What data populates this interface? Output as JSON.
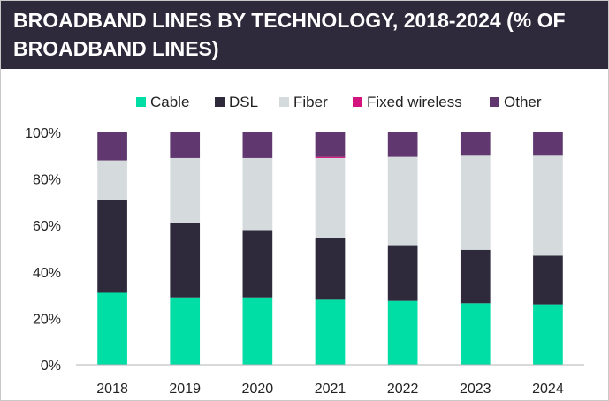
{
  "title": "BROADBAND LINES BY TECHNOLOGY, 2018-2024 (% OF BROADBAND LINES)",
  "colors": {
    "title_bg": "#2e2a3c",
    "Cable": "#00dda5",
    "DSL": "#2e2a3c",
    "Fiber": "#d5dadd",
    "Fixed wireless": "#d4147e",
    "Other": "#60376f"
  },
  "chart_data": {
    "type": "bar",
    "stacked": true,
    "title": "BROADBAND LINES BY TECHNOLOGY, 2018-2024 (% OF BROADBAND LINES)",
    "xlabel": "",
    "ylabel": "",
    "categories": [
      "2018",
      "2019",
      "2020",
      "2021",
      "2022",
      "2023",
      "2024"
    ],
    "ylim": [
      0,
      100
    ],
    "yticks": [
      "0%",
      "20%",
      "40%",
      "60%",
      "80%",
      "100%"
    ],
    "legend_position": "top",
    "grid": false,
    "series": [
      {
        "name": "Cable",
        "color": "#00dda5",
        "values": [
          31,
          29,
          29,
          28,
          27.5,
          26.5,
          26
        ]
      },
      {
        "name": "DSL",
        "color": "#2e2a3c",
        "values": [
          40,
          32,
          29,
          26.5,
          24,
          23,
          21
        ]
      },
      {
        "name": "Fiber",
        "color": "#d5dadd",
        "values": [
          17,
          28,
          31,
          34.5,
          38,
          40.5,
          43
        ]
      },
      {
        "name": "Fixed wireless",
        "color": "#d4147e",
        "values": [
          0,
          0,
          0,
          0.5,
          0,
          0,
          0
        ]
      },
      {
        "name": "Other",
        "color": "#60376f",
        "values": [
          12,
          11,
          11,
          10.5,
          10.5,
          10,
          10
        ]
      }
    ]
  }
}
